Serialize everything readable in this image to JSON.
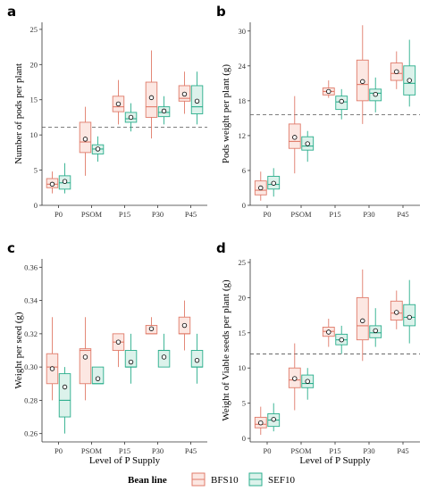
{
  "legend": {
    "title": "Bean line",
    "items": [
      {
        "name": "BFS10",
        "color": "#E07B6A",
        "fill": "#FCE7E2"
      },
      {
        "name": "SEF10",
        "color": "#2AAE8C",
        "fill": "#DCF2EB"
      }
    ]
  },
  "chart_data": [
    {
      "panel": "a",
      "type": "box",
      "ylabel": "Number of pods per plant",
      "xlabel": "",
      "categories": [
        "P0",
        "PSOM",
        "P15",
        "P30",
        "P45"
      ],
      "ylim": [
        0,
        26
      ],
      "yticks": [
        0,
        5,
        10,
        15,
        20,
        25
      ],
      "refline": 11.1,
      "series": [
        {
          "name": "BFS10",
          "boxes": [
            {
              "min": 1.7,
              "q1": 2.5,
              "median": 3.0,
              "q3": 3.8,
              "max": 4.8,
              "mean": 3.0
            },
            {
              "min": 4.2,
              "q1": 7.5,
              "median": 9.0,
              "q3": 11.8,
              "max": 14.0,
              "mean": 9.4
            },
            {
              "min": 11.5,
              "q1": 13.3,
              "median": 14.0,
              "q3": 15.5,
              "max": 17.8,
              "mean": 14.4
            },
            {
              "min": 9.5,
              "q1": 12.5,
              "median": 14.0,
              "q3": 17.5,
              "max": 22.0,
              "mean": 15.3
            },
            {
              "min": 13.0,
              "q1": 14.8,
              "median": 15.2,
              "q3": 17.0,
              "max": 19.0,
              "mean": 15.8
            }
          ]
        },
        {
          "name": "SEF10",
          "boxes": [
            {
              "min": 1.7,
              "q1": 2.3,
              "median": 3.2,
              "q3": 4.2,
              "max": 6.0,
              "mean": 3.4
            },
            {
              "min": 6.2,
              "q1": 7.3,
              "median": 8.0,
              "q3": 8.6,
              "max": 9.8,
              "mean": 8.0
            },
            {
              "min": 10.5,
              "q1": 11.8,
              "median": 12.3,
              "q3": 13.2,
              "max": 14.5,
              "mean": 12.5
            },
            {
              "min": 11.5,
              "q1": 12.6,
              "median": 13.2,
              "q3": 14.0,
              "max": 15.5,
              "mean": 13.4
            },
            {
              "min": 11.5,
              "q1": 13.0,
              "median": 14.0,
              "q3": 17.0,
              "max": 19.0,
              "mean": 14.8
            }
          ]
        }
      ]
    },
    {
      "panel": "b",
      "type": "box",
      "ylabel": "Pods weight per plant (g)",
      "xlabel": "",
      "categories": [
        "P0",
        "PSOM",
        "P15",
        "P30",
        "P45"
      ],
      "ylim": [
        0,
        31.5
      ],
      "yticks": [
        0,
        6,
        12,
        18,
        24,
        30
      ],
      "refline": 15.6,
      "series": [
        {
          "name": "BFS10",
          "boxes": [
            {
              "min": 0.8,
              "q1": 1.8,
              "median": 2.6,
              "q3": 4.2,
              "max": 5.8,
              "mean": 3.0
            },
            {
              "min": 5.5,
              "q1": 9.8,
              "median": 11.0,
              "q3": 14.0,
              "max": 18.8,
              "mean": 11.7
            },
            {
              "min": 18.5,
              "q1": 19.0,
              "median": 19.6,
              "q3": 20.2,
              "max": 21.5,
              "mean": 19.6
            },
            {
              "min": 14.0,
              "q1": 18.0,
              "median": 20.8,
              "q3": 25.0,
              "max": 31.0,
              "mean": 21.3
            },
            {
              "min": 20.0,
              "q1": 21.5,
              "median": 22.7,
              "q3": 24.5,
              "max": 26.5,
              "mean": 23.0
            }
          ]
        },
        {
          "name": "SEF10",
          "boxes": [
            {
              "min": 1.5,
              "q1": 2.8,
              "median": 3.6,
              "q3": 5.0,
              "max": 6.4,
              "mean": 3.8
            },
            {
              "min": 7.5,
              "q1": 9.5,
              "median": 10.2,
              "q3": 11.8,
              "max": 12.8,
              "mean": 10.6
            },
            {
              "min": 14.8,
              "q1": 16.5,
              "median": 17.8,
              "q3": 18.8,
              "max": 20.0,
              "mean": 17.9
            },
            {
              "min": 16.0,
              "q1": 18.0,
              "median": 19.3,
              "q3": 20.0,
              "max": 22.0,
              "mean": 19.1
            },
            {
              "min": 17.0,
              "q1": 19.0,
              "median": 21.0,
              "q3": 24.0,
              "max": 28.5,
              "mean": 21.5
            }
          ]
        }
      ]
    },
    {
      "panel": "c",
      "type": "box",
      "ylabel": "Weight per seed (g)",
      "xlabel": "Level of P Supply",
      "categories": [
        "P0",
        "PSOM",
        "P15",
        "P30",
        "P45"
      ],
      "ylim": [
        0.255,
        0.365
      ],
      "yticks": [
        0.26,
        0.28,
        0.3,
        0.32,
        0.34,
        0.36
      ],
      "refline": null,
      "series": [
        {
          "name": "BFS10",
          "boxes": [
            {
              "min": 0.28,
              "q1": 0.29,
              "median": 0.3,
              "q3": 0.308,
              "max": 0.33,
              "mean": 0.299
            },
            {
              "min": 0.28,
              "q1": 0.29,
              "median": 0.31,
              "q3": 0.311,
              "max": 0.33,
              "mean": 0.306
            },
            {
              "min": 0.3,
              "q1": 0.31,
              "median": 0.315,
              "q3": 0.32,
              "max": 0.32,
              "mean": 0.315
            },
            {
              "min": 0.32,
              "q1": 0.32,
              "median": 0.32,
              "q3": 0.325,
              "max": 0.33,
              "mean": 0.323
            },
            {
              "min": 0.31,
              "q1": 0.32,
              "median": 0.32,
              "q3": 0.33,
              "max": 0.34,
              "mean": 0.325
            }
          ]
        },
        {
          "name": "SEF10",
          "boxes": [
            {
              "min": 0.26,
              "q1": 0.27,
              "median": 0.28,
              "q3": 0.296,
              "max": 0.3,
              "mean": 0.288
            },
            {
              "min": 0.29,
              "q1": 0.29,
              "median": 0.29,
              "q3": 0.3,
              "max": 0.3,
              "mean": 0.293
            },
            {
              "min": 0.29,
              "q1": 0.3,
              "median": 0.3,
              "q3": 0.31,
              "max": 0.32,
              "mean": 0.303
            },
            {
              "min": 0.3,
              "q1": 0.3,
              "median": 0.31,
              "q3": 0.31,
              "max": 0.32,
              "mean": 0.306
            },
            {
              "min": 0.29,
              "q1": 0.3,
              "median": 0.3,
              "q3": 0.31,
              "max": 0.32,
              "mean": 0.304
            }
          ]
        }
      ]
    },
    {
      "panel": "d",
      "type": "box",
      "ylabel": "Weight of Viable seeds per plant (g)",
      "xlabel": "Level of P Supply",
      "categories": [
        "P0",
        "PSOM",
        "P15",
        "P30",
        "P45"
      ],
      "ylim": [
        -0.5,
        25.5
      ],
      "yticks": [
        0,
        5,
        10,
        15,
        20,
        25
      ],
      "refline": 12.0,
      "series": [
        {
          "name": "BFS10",
          "boxes": [
            {
              "min": 0.5,
              "q1": 1.5,
              "median": 2.0,
              "q3": 3.0,
              "max": 4.5,
              "mean": 2.2
            },
            {
              "min": 4.0,
              "q1": 7.2,
              "median": 8.3,
              "q3": 10.0,
              "max": 13.5,
              "mean": 8.5
            },
            {
              "min": 13.0,
              "q1": 14.5,
              "median": 15.2,
              "q3": 15.8,
              "max": 17.0,
              "mean": 15.1
            },
            {
              "min": 11.0,
              "q1": 14.0,
              "median": 16.0,
              "q3": 20.0,
              "max": 24.0,
              "mean": 16.7
            },
            {
              "min": 15.5,
              "q1": 16.8,
              "median": 17.8,
              "q3": 19.5,
              "max": 21.0,
              "mean": 17.9
            }
          ]
        },
        {
          "name": "SEF10",
          "boxes": [
            {
              "min": 1.0,
              "q1": 1.7,
              "median": 2.6,
              "q3": 3.5,
              "max": 5.0,
              "mean": 2.7
            },
            {
              "min": 5.5,
              "q1": 7.2,
              "median": 7.8,
              "q3": 9.0,
              "max": 10.0,
              "mean": 8.1
            },
            {
              "min": 12.0,
              "q1": 13.3,
              "median": 14.0,
              "q3": 14.8,
              "max": 16.0,
              "mean": 14.0
            },
            {
              "min": 13.0,
              "q1": 14.3,
              "median": 15.0,
              "q3": 16.0,
              "max": 18.5,
              "mean": 15.3
            },
            {
              "min": 13.5,
              "q1": 16.0,
              "median": 17.2,
              "q3": 19.0,
              "max": 22.5,
              "mean": 17.2
            }
          ]
        }
      ]
    }
  ]
}
